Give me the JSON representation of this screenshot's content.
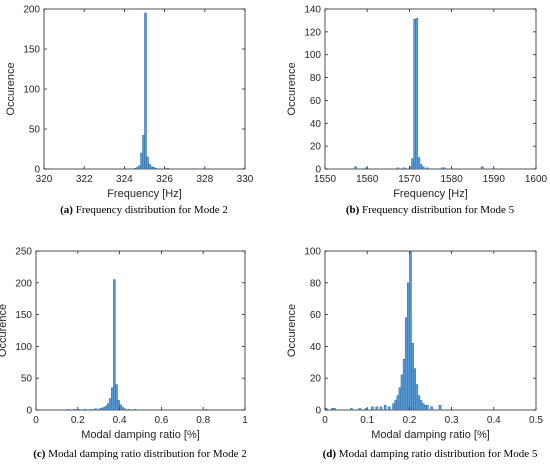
{
  "colors": {
    "bar_fill": "#5b9bd5",
    "bar_edge": "#2f6a9f",
    "axis": "#262626"
  },
  "chart_data": [
    {
      "type": "histogram",
      "caption_tag": "(a)",
      "caption_text": "Frequency distribution for Mode 2",
      "xlabel": "Frequency [Hz]",
      "ylabel": "Occurence",
      "xlim": [
        320,
        330
      ],
      "ylim": [
        0,
        200
      ],
      "xticks": [
        320,
        322,
        324,
        326,
        328,
        330
      ],
      "yticks": [
        0,
        50,
        100,
        150,
        200
      ],
      "grid": false,
      "bin_width": 0.1,
      "bins": [
        {
          "x": 321.9,
          "y": 0.5
        },
        {
          "x": 324.5,
          "y": 1
        },
        {
          "x": 324.6,
          "y": 2
        },
        {
          "x": 324.7,
          "y": 4
        },
        {
          "x": 324.8,
          "y": 20
        },
        {
          "x": 324.9,
          "y": 42
        },
        {
          "x": 325.0,
          "y": 195
        },
        {
          "x": 325.1,
          "y": 15
        },
        {
          "x": 325.2,
          "y": 6
        },
        {
          "x": 325.3,
          "y": 3
        },
        {
          "x": 325.4,
          "y": 2
        },
        {
          "x": 325.5,
          "y": 1
        },
        {
          "x": 326.1,
          "y": 1
        },
        {
          "x": 327.4,
          "y": 0.5
        }
      ]
    },
    {
      "type": "histogram",
      "caption_tag": "(b)",
      "caption_text": "Frequency distribution for Mode 5",
      "xlabel": "Frequency [Hz]",
      "ylabel": "Occurence",
      "xlim": [
        1550,
        1600
      ],
      "ylim": [
        0,
        140
      ],
      "xticks": [
        1550,
        1560,
        1570,
        1580,
        1590,
        1600
      ],
      "yticks": [
        0,
        20,
        40,
        60,
        80,
        100,
        120,
        140
      ],
      "grid": false,
      "bin_width": 0.5,
      "bins": [
        {
          "x": 1557.0,
          "y": 2
        },
        {
          "x": 1559.5,
          "y": 1
        },
        {
          "x": 1567.0,
          "y": 1
        },
        {
          "x": 1568.5,
          "y": 1
        },
        {
          "x": 1570.0,
          "y": 2
        },
        {
          "x": 1570.5,
          "y": 9
        },
        {
          "x": 1571.0,
          "y": 131
        },
        {
          "x": 1571.5,
          "y": 132
        },
        {
          "x": 1572.0,
          "y": 10
        },
        {
          "x": 1572.5,
          "y": 4
        },
        {
          "x": 1573.0,
          "y": 2
        },
        {
          "x": 1574.0,
          "y": 1
        },
        {
          "x": 1577.5,
          "y": 1
        },
        {
          "x": 1578.0,
          "y": 1
        },
        {
          "x": 1587.0,
          "y": 2
        }
      ]
    },
    {
      "type": "histogram",
      "caption_tag": "(c)",
      "caption_text": "Modal damping ratio distribution for Mode 2",
      "xlabel": "Modal damping ratio [%]",
      "ylabel": "Occurence",
      "xlim": [
        0,
        1
      ],
      "ylim": [
        0,
        250
      ],
      "xticks": [
        0,
        0.2,
        0.4,
        0.6,
        0.8,
        1
      ],
      "yticks": [
        0,
        50,
        100,
        150,
        200,
        250
      ],
      "grid": false,
      "bin_width": 0.01,
      "bins": [
        {
          "x": 0.15,
          "y": 1
        },
        {
          "x": 0.18,
          "y": 1
        },
        {
          "x": 0.2,
          "y": 1
        },
        {
          "x": 0.23,
          "y": 1
        },
        {
          "x": 0.26,
          "y": 1
        },
        {
          "x": 0.28,
          "y": 2
        },
        {
          "x": 0.3,
          "y": 2
        },
        {
          "x": 0.31,
          "y": 3
        },
        {
          "x": 0.32,
          "y": 4
        },
        {
          "x": 0.33,
          "y": 6
        },
        {
          "x": 0.34,
          "y": 10
        },
        {
          "x": 0.35,
          "y": 18
        },
        {
          "x": 0.36,
          "y": 35
        },
        {
          "x": 0.37,
          "y": 205
        },
        {
          "x": 0.38,
          "y": 40
        },
        {
          "x": 0.39,
          "y": 15
        },
        {
          "x": 0.4,
          "y": 8
        },
        {
          "x": 0.41,
          "y": 4
        },
        {
          "x": 0.42,
          "y": 2
        },
        {
          "x": 0.44,
          "y": 1
        },
        {
          "x": 0.47,
          "y": 1
        },
        {
          "x": 0.81,
          "y": 1
        }
      ]
    },
    {
      "type": "histogram",
      "caption_tag": "(d)",
      "caption_text": "Modal damping ratio distribution for Mode 5",
      "xlabel": "Modal damping ratio [%]",
      "ylabel": "Occurence",
      "xlim": [
        0,
        0.5
      ],
      "ylim": [
        0,
        100
      ],
      "xticks": [
        0,
        0.1,
        0.2,
        0.3,
        0.4,
        0.5
      ],
      "yticks": [
        0,
        20,
        40,
        60,
        80,
        100
      ],
      "grid": false,
      "bin_width": 0.005,
      "bins": [
        {
          "x": 0.0,
          "y": 1
        },
        {
          "x": 0.015,
          "y": 1
        },
        {
          "x": 0.02,
          "y": 1
        },
        {
          "x": 0.06,
          "y": 1
        },
        {
          "x": 0.08,
          "y": 1
        },
        {
          "x": 0.095,
          "y": 1
        },
        {
          "x": 0.11,
          "y": 2
        },
        {
          "x": 0.12,
          "y": 2
        },
        {
          "x": 0.13,
          "y": 2
        },
        {
          "x": 0.14,
          "y": 3
        },
        {
          "x": 0.15,
          "y": 2
        },
        {
          "x": 0.16,
          "y": 4
        },
        {
          "x": 0.165,
          "y": 6
        },
        {
          "x": 0.17,
          "y": 9
        },
        {
          "x": 0.175,
          "y": 14
        },
        {
          "x": 0.18,
          "y": 22
        },
        {
          "x": 0.185,
          "y": 32
        },
        {
          "x": 0.19,
          "y": 58
        },
        {
          "x": 0.195,
          "y": 80
        },
        {
          "x": 0.2,
          "y": 100
        },
        {
          "x": 0.205,
          "y": 42
        },
        {
          "x": 0.21,
          "y": 26
        },
        {
          "x": 0.215,
          "y": 16
        },
        {
          "x": 0.22,
          "y": 9
        },
        {
          "x": 0.225,
          "y": 6
        },
        {
          "x": 0.23,
          "y": 4
        },
        {
          "x": 0.235,
          "y": 3
        },
        {
          "x": 0.24,
          "y": 3
        },
        {
          "x": 0.25,
          "y": 2
        },
        {
          "x": 0.27,
          "y": 3
        }
      ]
    }
  ]
}
